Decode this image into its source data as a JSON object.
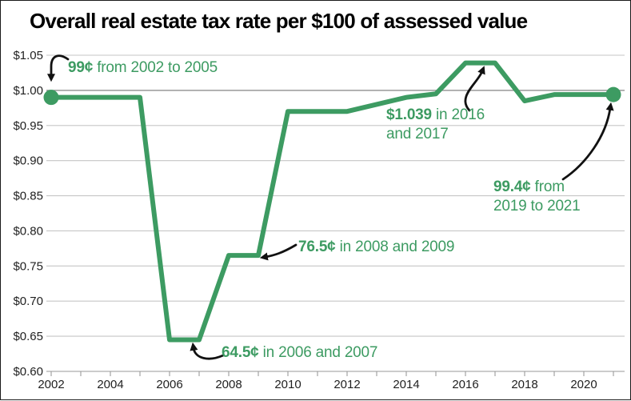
{
  "title": "Overall real estate tax rate per $100 of assessed value",
  "chart_data": {
    "type": "line",
    "x": [
      2002,
      2003,
      2004,
      2005,
      2006,
      2007,
      2008,
      2009,
      2010,
      2011,
      2012,
      2013,
      2014,
      2015,
      2016,
      2017,
      2018,
      2019,
      2020,
      2021
    ],
    "values": [
      0.99,
      0.99,
      0.99,
      0.99,
      0.645,
      0.645,
      0.765,
      0.765,
      0.97,
      0.97,
      0.97,
      0.98,
      0.99,
      0.995,
      1.039,
      1.039,
      0.985,
      0.994,
      0.994,
      0.994
    ],
    "title": "Overall real estate tax rate per $100 of assessed value",
    "xlabel": "",
    "ylabel": "",
    "xlim": [
      2002,
      2021
    ],
    "ylim": [
      0.6,
      1.05
    ],
    "yticks": [
      1.05,
      1.0,
      0.95,
      0.9,
      0.85,
      0.8,
      0.75,
      0.7,
      0.65,
      0.6
    ],
    "ytick_labels": [
      "$1.05",
      "$1.00",
      "$0.95",
      "$0.90",
      "$0.85",
      "$0.80",
      "$0.75",
      "$0.70",
      "$0.65",
      "$0.60"
    ],
    "xtick_labels": [
      "2002",
      "2004",
      "2006",
      "2008",
      "2010",
      "2012",
      "2014",
      "2016",
      "2018",
      "2020"
    ],
    "grid": "horizontal",
    "emphasized_gridline_value": 1.0,
    "legend": "none",
    "line_color": "#3d9b62",
    "marked_points": [
      {
        "year": 2002,
        "value": 0.99
      },
      {
        "year": 2021,
        "value": 0.994
      }
    ]
  },
  "annotations": {
    "a2002": {
      "bold": "99¢",
      "rest": " from 2002 to 2005"
    },
    "a2006": {
      "bold": "64.5¢",
      "rest": " in 2006 and 2007"
    },
    "a2008": {
      "bold": "76.5¢",
      "rest": " in 2008 and 2009"
    },
    "a2016": {
      "bold": "$1.039",
      "rest": " in 2016",
      "line2": "and 2017"
    },
    "a2019": {
      "bold": "99.4¢",
      "rest": " from",
      "line2": "2019 to 2021"
    }
  },
  "colors": {
    "line": "#3d9b62",
    "annotation_text": "#3d9b62",
    "grid": "#c6c6c6",
    "grid_emphasis": "#8f8f8f",
    "axis": "#9a9a9a",
    "tick_text": "#1f1f1f",
    "arrow": "#111111",
    "title_text": "#000000",
    "background": "#ffffff"
  }
}
